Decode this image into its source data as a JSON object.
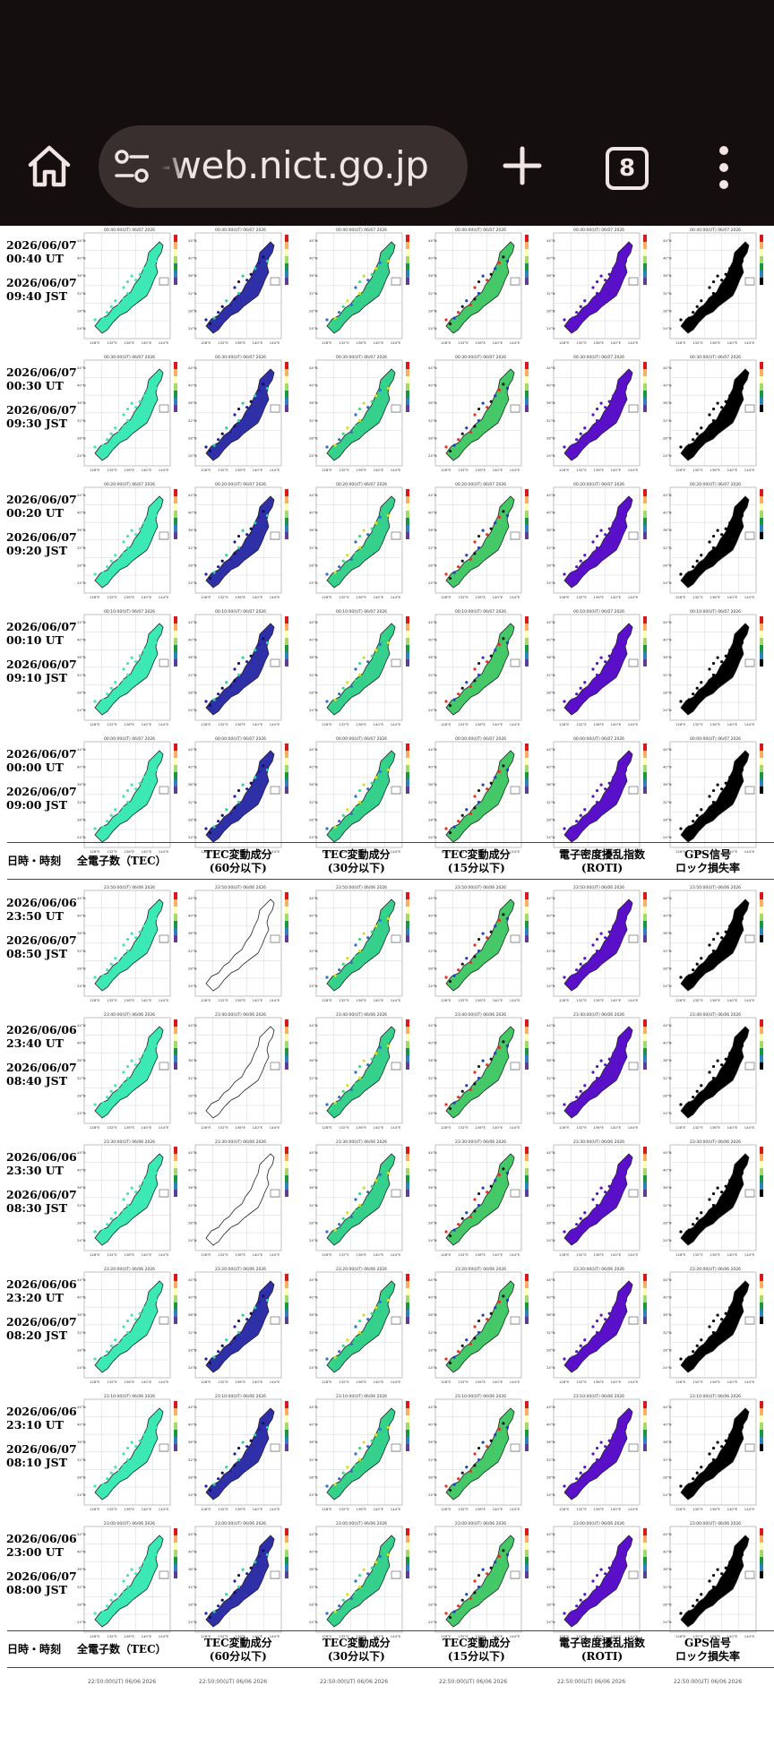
{
  "browser": {
    "url": "-web.nict.go.jp",
    "tab_count": "8",
    "icons": [
      "home-icon",
      "tune-icon",
      "plus-icon",
      "tabs-icon",
      "more-vert-icon"
    ],
    "chrome_color": "#150e0e",
    "pill_color": "#3a2f2f"
  },
  "table": {
    "header": {
      "time": "日時・時刻",
      "columns": [
        {
          "l1": "全電子数（TEC）",
          "l2": ""
        },
        {
          "l1": "TEC変動成分",
          "l2": "(60分以下)"
        },
        {
          "l1": "TEC変動成分",
          "l2": "(30分以下)"
        },
        {
          "l1": "TEC変動成分",
          "l2": "(15分以下)"
        },
        {
          "l1": "電子密度擾乱指数",
          "l2": "(ROTI)"
        },
        {
          "l1": "GPS信号",
          "l2": "ロック損失率"
        }
      ]
    },
    "rows_top": [
      {
        "ut": "2026/06/07 00:40 UT",
        "jst": "2026/06/07 09:40 JST",
        "map": "00:40:00(UT) 06/07 2026"
      },
      {
        "ut": "2026/06/07 00:30 UT",
        "jst": "2026/06/07 09:30 JST",
        "map": "00:30:00(UT) 06/07 2026"
      },
      {
        "ut": "2026/06/07 00:20 UT",
        "jst": "2026/06/07 09:20 JST",
        "map": "00:20:00(UT) 06/07 2026"
      },
      {
        "ut": "2026/06/07 00:10 UT",
        "jst": "2026/06/07 09:10 JST",
        "map": "00:10:00(UT) 06/07 2026"
      },
      {
        "ut": "2026/06/07 00:00 UT",
        "jst": "2026/06/07 09:00 JST",
        "map": "00:00:00(UT) 06/07 2026"
      }
    ],
    "rows_bottom": [
      {
        "ut": "2026/06/06 23:50 UT",
        "jst": "2026/06/07 08:50 JST",
        "map": "23:50:00(UT) 06/06 2026"
      },
      {
        "ut": "2026/06/06 23:40 UT",
        "jst": "2026/06/07 08:40 JST",
        "map": "23:40:00(UT) 06/06 2026"
      },
      {
        "ut": "2026/06/06 23:30 UT",
        "jst": "2026/06/07 08:30 JST",
        "map": "23:30:00(UT) 06/06 2026"
      },
      {
        "ut": "2026/06/06 23:20 UT",
        "jst": "2026/06/07 08:20 JST",
        "map": "23:20:00(UT) 06/06 2026"
      },
      {
        "ut": "2026/06/06 23:10 UT",
        "jst": "2026/06/07 08:10 JST",
        "map": "23:10:00(UT) 06/06 2026"
      },
      {
        "ut": "2026/06/06 23:00 UT",
        "jst": "2026/06/07 08:00 JST",
        "map": "23:00:00(UT) 06/06 2026"
      }
    ],
    "next_row_map": "22:50:00(UT) 06/06 2026",
    "lat_labels": [
      "44°N",
      "40°N",
      "36°N",
      "32°N",
      "28°N",
      "24°N"
    ],
    "lon_labels": [
      "128°E",
      "132°E",
      "136°E",
      "140°E",
      "144°E"
    ],
    "map_colors": [
      "#3ce8b4",
      "#2f2fa8",
      "#35d08c",
      "#44c868",
      "#5a10c8",
      "#000000"
    ]
  }
}
